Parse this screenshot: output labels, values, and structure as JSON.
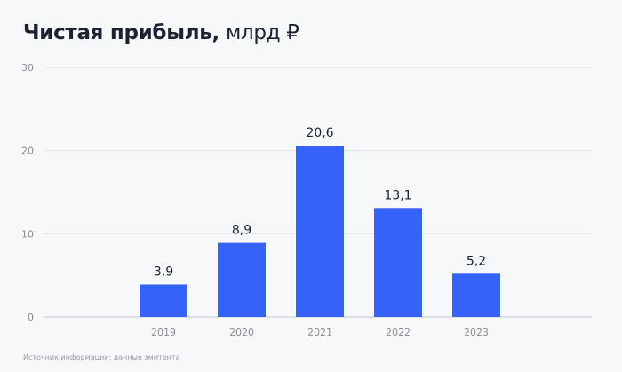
{
  "title": {
    "main": "Чистая прибыль,",
    "unit": "млрд ₽"
  },
  "source": "Источник информации: данные эмитента",
  "colors": {
    "bar": "#3563fa",
    "grid": "#e3e5ea",
    "axis": "#d4d6dc",
    "tick": "#8c8e98",
    "label": "#1d2233"
  },
  "chart_data": {
    "type": "bar",
    "title": "Чистая прибыль, млрд ₽",
    "categories": [
      "2019",
      "2020",
      "2021",
      "2022",
      "2023"
    ],
    "values": [
      3.9,
      8.9,
      20.6,
      13.1,
      5.2
    ],
    "data_labels": [
      "3,9",
      "8,9",
      "20,6",
      "13,1",
      "5,2"
    ],
    "yticks": [
      0,
      10,
      20,
      30
    ],
    "ylim": [
      0,
      30
    ],
    "xlabel": "",
    "ylabel": "",
    "grid": true
  }
}
